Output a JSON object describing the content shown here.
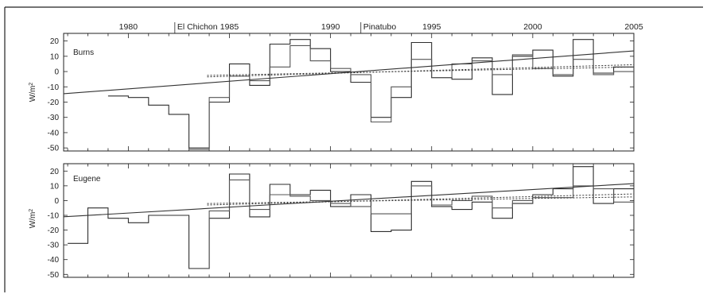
{
  "chart_data": [
    {
      "type": "line",
      "title": "Burns",
      "ylabel": "W/m",
      "ylabel_sup": "2",
      "xlim": [
        1976.8,
        2005.0
      ],
      "ylim": [
        -52,
        25
      ],
      "x_ticks": [
        1980,
        1985,
        1990,
        1995,
        2000,
        2005
      ],
      "x_tick_labels": [
        "1980",
        "1985",
        "1990",
        "1995",
        "2000",
        "2005"
      ],
      "y_ticks": [
        20,
        10,
        0,
        -10,
        -20,
        -30,
        -40,
        -50
      ],
      "y_tick_labels": [
        "20",
        "10",
        "0",
        "-10",
        "-20",
        "-30",
        "-40",
        "-50"
      ],
      "annotations": [
        {
          "label": "El Chichon",
          "x": 1982.3
        },
        {
          "label": "Pinatubo",
          "x": 1991.5
        }
      ],
      "series": [
        {
          "style": "step",
          "color": "#2e2e2e",
          "x": [
            1979,
            1980,
            1981,
            1982,
            1983,
            1984,
            1985,
            1986,
            1987,
            1988,
            1989,
            1990,
            1991,
            1992,
            1993,
            1994,
            1995,
            1996,
            1997,
            1998,
            1999,
            2000,
            2001,
            2002,
            2003,
            2004,
            2005
          ],
          "values": [
            -16,
            -17,
            -22,
            -28,
            -50,
            -20,
            5,
            -9,
            18,
            21,
            15,
            0,
            -7,
            -30,
            -17,
            19,
            -4,
            -5,
            9,
            -15,
            10,
            14,
            -3,
            21,
            -1,
            3,
            3
          ]
        },
        {
          "style": "step",
          "color": "#555555",
          "x": [
            1983,
            1984,
            1985,
            1986,
            1987,
            1988,
            1989,
            1990,
            1991,
            1992,
            1993,
            1994,
            1995,
            1996,
            1997,
            1998,
            1999,
            2000,
            2001,
            2002,
            2003,
            2004,
            2005
          ],
          "values": [
            -51,
            -17,
            -3,
            -6,
            3,
            17,
            7,
            2,
            -2,
            -33,
            -10,
            8,
            -4,
            5,
            7,
            -2,
            11,
            2,
            -2,
            8,
            -2,
            0,
            0
          ]
        },
        {
          "style": "trend",
          "x": [
            1976.8,
            2005.0
          ],
          "values": [
            -14.5,
            13.5
          ]
        },
        {
          "style": "trend-dotted",
          "x": [
            1983.9,
            2005.0
          ],
          "values": [
            -3.5,
            4.5
          ]
        },
        {
          "style": "trend-dotted",
          "x": [
            1983.9,
            2005.0
          ],
          "values": [
            -2.5,
            3.0
          ]
        }
      ]
    },
    {
      "type": "line",
      "title": "Eugene",
      "ylabel": "W/m",
      "ylabel_sup": "2",
      "xlim": [
        1976.8,
        2005.0
      ],
      "ylim": [
        -52,
        25
      ],
      "x_ticks": [
        1980,
        1985,
        1990,
        1995,
        2000,
        2005
      ],
      "y_ticks": [
        20,
        10,
        0,
        -10,
        -20,
        -30,
        -40,
        -50
      ],
      "y_tick_labels": [
        "20",
        "10",
        "0",
        "-10",
        "-20",
        "-30",
        "-40",
        "-50"
      ],
      "series": [
        {
          "style": "step",
          "color": "#2e2e2e",
          "x": [
            1977,
            1978,
            1979,
            1980,
            1981,
            1982,
            1983,
            1984,
            1985,
            1986,
            1987,
            1988,
            1989,
            1990,
            1991,
            1992,
            1993,
            1994,
            1995,
            1996,
            1997,
            1998,
            1999,
            2000,
            2001,
            2002,
            2003,
            2004,
            2005
          ],
          "values": [
            -29,
            -5,
            -12,
            -15,
            -10,
            -10,
            -46,
            -12,
            18,
            -11,
            11,
            4,
            7,
            -4,
            4,
            -21,
            -20,
            13,
            -4,
            -6,
            -1,
            -12,
            -2,
            4,
            8,
            23,
            -2,
            8,
            8
          ]
        },
        {
          "style": "step",
          "color": "#555555",
          "x": [
            1983,
            1984,
            1985,
            1986,
            1987,
            1988,
            1989,
            1990,
            1991,
            1992,
            1993,
            1994,
            1995,
            1996,
            1997,
            1998,
            1999,
            2000,
            2001,
            2002,
            2003,
            2004,
            2005
          ],
          "values": [
            -46,
            -7,
            14,
            -6,
            4,
            3,
            0,
            -2,
            -4,
            -9,
            -9,
            10,
            -3,
            0,
            3,
            -5,
            0,
            2,
            2,
            10,
            8,
            -1,
            -1
          ]
        },
        {
          "style": "trend",
          "x": [
            1976.8,
            2005.0
          ],
          "values": [
            -11.0,
            11.5
          ]
        },
        {
          "style": "trend-dotted",
          "x": [
            1983.9,
            2005.0
          ],
          "values": [
            -3.0,
            4.5
          ]
        },
        {
          "style": "trend-dotted",
          "x": [
            1983.9,
            2005.0
          ],
          "values": [
            -2.0,
            2.5
          ]
        }
      ]
    }
  ]
}
